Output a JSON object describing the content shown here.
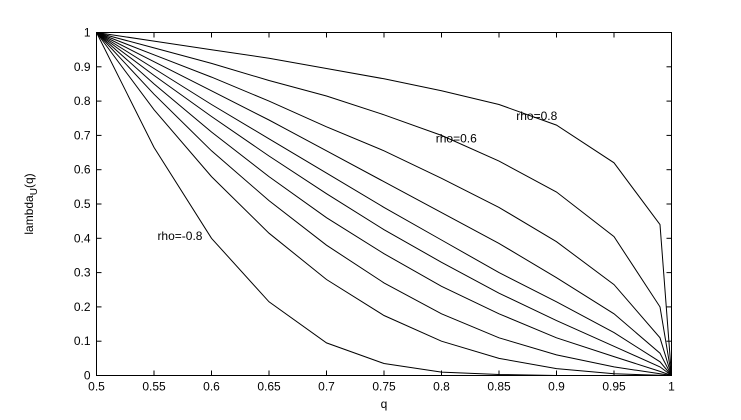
{
  "chart_data": {
    "type": "line",
    "title": "",
    "xlabel": "q",
    "ylabel": "lambda",
    "ylabel_sub": "U",
    "ylabel_suffix": "(q)",
    "xlim": [
      0.5,
      1
    ],
    "ylim": [
      0,
      1
    ],
    "grid": false,
    "x_ticks": [
      "0.5",
      "0.55",
      "0.6",
      "0.65",
      "0.7",
      "0.75",
      "0.8",
      "0.85",
      "0.9",
      "0.95",
      "1"
    ],
    "y_ticks": [
      "0",
      "0.1",
      "0.2",
      "0.3",
      "0.4",
      "0.5",
      "0.6",
      "0.7",
      "0.8",
      "0.9",
      "1"
    ],
    "x": [
      0.5,
      0.55,
      0.6,
      0.65,
      0.7,
      0.75,
      0.8,
      0.85,
      0.9,
      0.95,
      0.99,
      1
    ],
    "series": [
      {
        "values": [
          1,
          0.665,
          0.4,
          0.215,
          0.095,
          0.035,
          0.01,
          0.003,
          0,
          0,
          0,
          0
        ]
      },
      {
        "values": [
          1,
          0.775,
          0.58,
          0.415,
          0.28,
          0.175,
          0.1,
          0.05,
          0.02,
          0.005,
          0.001,
          0
        ]
      },
      {
        "values": [
          1,
          0.82,
          0.655,
          0.51,
          0.38,
          0.27,
          0.18,
          0.11,
          0.06,
          0.025,
          0.005,
          0
        ]
      },
      {
        "values": [
          1,
          0.85,
          0.71,
          0.58,
          0.46,
          0.355,
          0.26,
          0.18,
          0.11,
          0.055,
          0.012,
          0
        ]
      },
      {
        "values": [
          1,
          0.875,
          0.755,
          0.64,
          0.53,
          0.425,
          0.33,
          0.24,
          0.16,
          0.085,
          0.025,
          0
        ]
      },
      {
        "values": [
          1,
          0.895,
          0.79,
          0.69,
          0.59,
          0.49,
          0.395,
          0.3,
          0.215,
          0.125,
          0.04,
          0
        ]
      },
      {
        "values": [
          1,
          0.915,
          0.83,
          0.745,
          0.655,
          0.565,
          0.475,
          0.385,
          0.285,
          0.18,
          0.065,
          0
        ]
      },
      {
        "values": [
          1,
          0.935,
          0.87,
          0.8,
          0.725,
          0.655,
          0.575,
          0.49,
          0.39,
          0.265,
          0.11,
          0
        ]
      },
      {
        "values": [
          1,
          0.955,
          0.91,
          0.86,
          0.815,
          0.76,
          0.7,
          0.625,
          0.535,
          0.405,
          0.2,
          0
        ]
      },
      {
        "values": [
          1,
          0.975,
          0.95,
          0.925,
          0.895,
          0.865,
          0.83,
          0.79,
          0.73,
          0.62,
          0.44,
          0
        ]
      }
    ],
    "annotations": [
      {
        "text": "rho=0.8",
        "x": 0.865,
        "y": 0.745
      },
      {
        "text": "rho=0.6",
        "x": 0.795,
        "y": 0.68
      },
      {
        "text": "rho=-0.8",
        "x": 0.553,
        "y": 0.395
      }
    ]
  }
}
